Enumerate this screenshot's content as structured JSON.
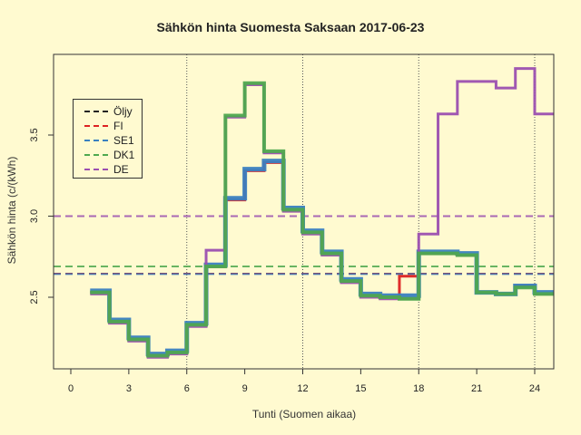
{
  "chart_data": {
    "type": "line",
    "subtype": "step",
    "title": "Sähkön hinta Suomesta Saksaan 2017-06-23",
    "xlabel": "Tunti (Suomen aikaa)",
    "ylabel": "Sähkön hinta (c/(kWh)",
    "xlim": [
      -1,
      25
    ],
    "ylim": [
      2.05,
      4.0
    ],
    "xticks": [
      0,
      3,
      6,
      9,
      12,
      15,
      18,
      21,
      24
    ],
    "yticks": [
      2.5,
      3.0,
      3.5
    ],
    "ytick_labels": [
      "2.5",
      "3.0",
      "3.5"
    ],
    "vlines": [
      6,
      12,
      18,
      24
    ],
    "legend_position": "top-left",
    "x": [
      1,
      2,
      3,
      4,
      5,
      6,
      7,
      8,
      9,
      10,
      11,
      12,
      13,
      14,
      15,
      16,
      17,
      18,
      19,
      20,
      21,
      22,
      23,
      24
    ],
    "series": [
      {
        "name": "FI",
        "color": "#dd2222",
        "width": 3,
        "values": [
          2.53,
          2.35,
          2.24,
          2.14,
          2.16,
          2.33,
          2.69,
          3.1,
          3.28,
          3.33,
          3.04,
          2.9,
          2.77,
          2.6,
          2.51,
          2.5,
          2.63,
          2.77,
          2.77,
          2.76,
          2.53,
          2.52,
          2.57,
          2.52
        ]
      },
      {
        "name": "SE1",
        "color": "#3a80c0",
        "width": 5,
        "values": [
          2.54,
          2.36,
          2.25,
          2.15,
          2.17,
          2.34,
          2.7,
          3.11,
          3.29,
          3.34,
          3.05,
          2.91,
          2.78,
          2.61,
          2.52,
          2.51,
          2.51,
          2.78,
          2.78,
          2.77,
          2.53,
          2.52,
          2.57,
          2.53
        ]
      },
      {
        "name": "DE",
        "color": "#9b4fb0",
        "width": 3,
        "values": [
          2.52,
          2.34,
          2.23,
          2.13,
          2.15,
          2.32,
          2.79,
          3.61,
          3.81,
          3.39,
          3.03,
          2.89,
          2.76,
          2.59,
          2.5,
          2.49,
          2.49,
          2.89,
          3.63,
          3.83,
          3.83,
          3.79,
          3.91,
          3.63
        ]
      },
      {
        "name": "DK1",
        "color": "#4fa84f",
        "width": 4,
        "values": [
          2.53,
          2.35,
          2.24,
          2.14,
          2.16,
          2.33,
          2.69,
          3.62,
          3.82,
          3.4,
          3.04,
          2.9,
          2.77,
          2.6,
          2.51,
          2.5,
          2.49,
          2.77,
          2.77,
          2.76,
          2.53,
          2.52,
          2.56,
          2.52
        ]
      }
    ],
    "reference_lines": [
      {
        "name": "Öljy",
        "color": "#333333",
        "value": 2.645
      },
      {
        "name": "FI",
        "color": "#dd2222",
        "value": 2.645
      },
      {
        "name": "SE1",
        "color": "#3a80c0",
        "value": 2.643
      },
      {
        "name": "DK1",
        "color": "#4fa84f",
        "value": 2.69
      },
      {
        "name": "DE",
        "color": "#9b4fb0",
        "value": 3.0
      }
    ],
    "legend": [
      {
        "label": "Öljy",
        "color": "#222222"
      },
      {
        "label": "FI",
        "color": "#dd2222"
      },
      {
        "label": "SE1",
        "color": "#3a80c0"
      },
      {
        "label": "DK1",
        "color": "#4fa84f"
      },
      {
        "label": "DE",
        "color": "#9b4fb0"
      }
    ]
  }
}
